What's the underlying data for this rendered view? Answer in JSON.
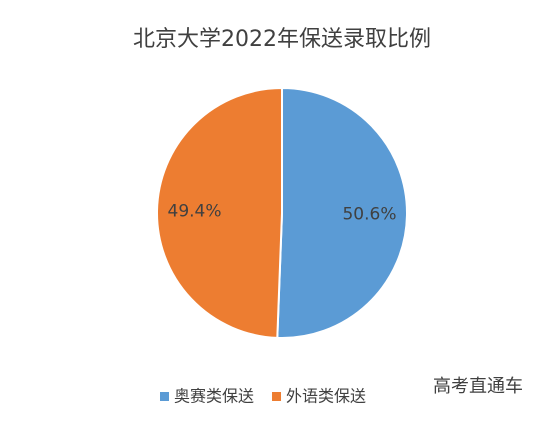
{
  "chart_data": {
    "type": "pie",
    "title": "北京大学2022年保送录取比例",
    "categories": [
      "奥赛类保送",
      "外语类保送"
    ],
    "values": [
      50.6,
      49.4
    ],
    "value_labels": [
      "50.6%",
      "49.4%"
    ],
    "colors": [
      "#5b9bd5",
      "#ed7d31"
    ],
    "legend": "bottom",
    "watermark": "高考直通车"
  }
}
